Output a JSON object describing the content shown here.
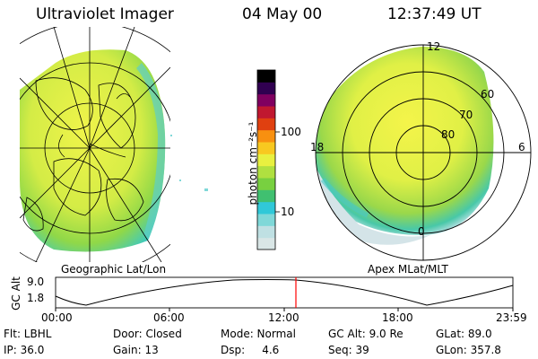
{
  "header": {
    "instrument": "Ultraviolet Imager",
    "date": "04 May 00",
    "time": "12:37:49 UT"
  },
  "left_panel": {
    "label": "Geographic Lat/Lon"
  },
  "right_panel": {
    "label": "Apex MLat/MLT",
    "mlt_labels": [
      "12",
      "18",
      "6",
      "0"
    ],
    "lat_labels": [
      "60",
      "70",
      "80"
    ]
  },
  "colorbar": {
    "unit_label": "photon cm⁻²s⁻¹",
    "tick_labels": [
      "100",
      "10"
    ],
    "colors": [
      "#d9e6e6",
      "#bfe0e3",
      "#7fd8d8",
      "#30c8d8",
      "#40c070",
      "#78d040",
      "#b0e040",
      "#e8f040",
      "#f8c820",
      "#f89010",
      "#e04010",
      "#c01830",
      "#800060",
      "#300050",
      "#000000"
    ]
  },
  "altitude_plot": {
    "ylabel": "GC Alt",
    "y_ticks": [
      "9.0",
      "1.8"
    ],
    "x_ticks": [
      "00:00",
      "06:00",
      "12:00",
      "18:00",
      "23:59"
    ],
    "marker_time": "12:37",
    "marker_color": "#ff0000"
  },
  "status": {
    "row1": [
      "Flt: LBHL",
      "Door: Closed",
      "Mode: Normal",
      "GC Alt: 9.0 Re",
      "GLat: 89.0"
    ],
    "row2": [
      "IP: 36.0",
      "Gain: 13",
      "Dsp:     4.6",
      "Seq: 39",
      "GLon: 357.8"
    ]
  }
}
